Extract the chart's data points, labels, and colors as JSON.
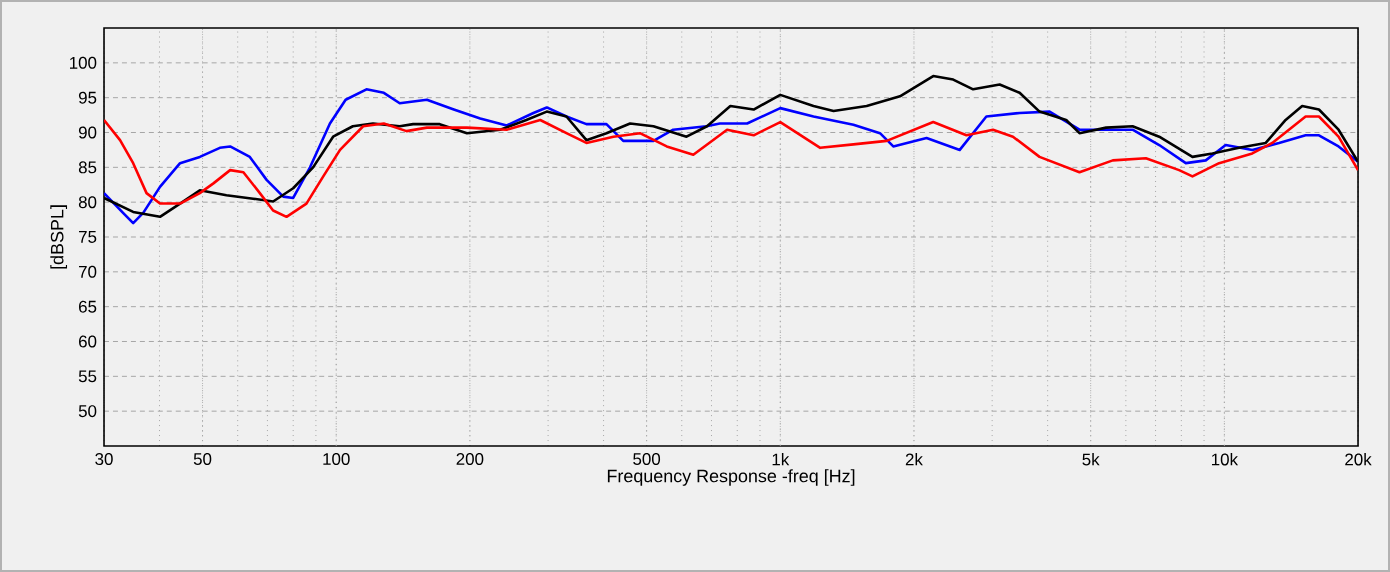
{
  "chart_data": {
    "type": "line",
    "xlabel": "Frequency Response -freq [Hz]",
    "ylabel": "[dBSPL]",
    "log": "x",
    "grid": true,
    "xlim": [
      30,
      20000
    ],
    "ylim": [
      45,
      105
    ],
    "xticks": [
      30,
      50,
      100,
      200,
      500,
      {
        "value": 1000,
        "label": "1k"
      },
      {
        "value": 2000,
        "label": "2k"
      },
      {
        "value": 5000,
        "label": "5k"
      },
      {
        "value": 10000,
        "label": "10k"
      },
      {
        "value": 20000,
        "label": "20k"
      }
    ],
    "yticks": [
      50,
      55,
      60,
      65,
      70,
      75,
      80,
      85,
      90,
      95,
      100
    ],
    "series": [
      {
        "color": "#0000ff",
        "x": [
          30,
          33.2,
          34.9,
          36.8,
          40.1,
          44.5,
          49.3,
          54.7,
          57.7,
          63.9,
          69.7,
          76,
          80,
          87.3,
          96.8,
          105,
          117,
          128,
          139,
          160,
          184,
          211,
          242,
          278,
          298,
          330,
          366,
          406,
          443,
          518,
          574,
          682,
          731,
          842,
          1000,
          1188,
          1461,
          1677,
          1797,
          2135,
          2536,
          2911,
          3459,
          4040,
          4718,
          5418,
          6214,
          7134,
          8188,
          9081,
          10070,
          11560,
          13280,
          15240,
          16330,
          18080,
          20000
        ],
        "values": [
          81.3,
          78.4,
          77,
          78.5,
          82.2,
          85.6,
          86.5,
          87.8,
          88,
          86.5,
          83.2,
          80.8,
          80.6,
          85,
          91.3,
          94.7,
          96.2,
          95.7,
          94.2,
          94.7,
          93.3,
          92,
          91,
          92.8,
          93.6,
          92.3,
          91.2,
          91.2,
          88.8,
          88.8,
          90.4,
          90.9,
          91.3,
          91.3,
          93.5,
          92.3,
          91.1,
          89.9,
          88,
          89.2,
          87.5,
          92.3,
          92.8,
          93,
          90.4,
          90.4,
          90.4,
          88.2,
          85.6,
          86,
          88.2,
          87.5,
          88.5,
          89.6,
          89.6,
          88,
          85.8
        ]
      },
      {
        "color": "#000000",
        "x": [
          30,
          34.9,
          40.1,
          44.5,
          49.3,
          56.6,
          65,
          72.1,
          80,
          88.7,
          98.4,
          109,
          121,
          139,
          149,
          171,
          197,
          234,
          268,
          298,
          330,
          366,
          406,
          459,
          518,
          615,
          684,
          772,
          871,
          1000,
          1188,
          1318,
          1565,
          1860,
          2210,
          2451,
          2718,
          3119,
          3459,
          3836,
          4403,
          4718,
          5418,
          6214,
          7134,
          8475,
          9400,
          10790,
          12390,
          13740,
          14970,
          16330,
          18080,
          20000
        ],
        "values": [
          80.6,
          78.6,
          77.9,
          79.8,
          81.7,
          81,
          80.5,
          80.1,
          82,
          85,
          89.4,
          90.9,
          91.3,
          90.9,
          91.2,
          91.2,
          89.9,
          90.4,
          91.8,
          93,
          92.3,
          88.9,
          89.9,
          91.3,
          90.9,
          89.4,
          90.9,
          93.8,
          93.3,
          95.4,
          93.8,
          93.1,
          93.8,
          95.2,
          98.1,
          97.6,
          96.2,
          96.9,
          95.7,
          93,
          91.8,
          89.9,
          90.7,
          90.9,
          89.4,
          86.5,
          87,
          87.8,
          88.5,
          91.8,
          93.8,
          93.3,
          90.4,
          85.8
        ]
      },
      {
        "color": "#ff0000",
        "x": [
          30,
          32.6,
          34.9,
          37.4,
          40.1,
          44.5,
          49.3,
          52.9,
          57.7,
          61.8,
          67.3,
          72.1,
          77.3,
          85.7,
          93.5,
          102,
          115,
          128,
          144,
          160,
          197,
          242,
          288,
          330,
          366,
          421,
          483,
          555,
          637,
          759,
          871,
          1000,
          1230,
          1461,
          1736,
          2210,
          2625,
          3013,
          3342,
          3836,
          4718,
          5608,
          6658,
          7910,
          8475,
          9730,
          11560,
          12820,
          15240,
          16330,
          18080,
          20000
        ],
        "values": [
          91.8,
          88.9,
          85.6,
          81.3,
          79.8,
          79.8,
          81.3,
          82.7,
          84.6,
          84.3,
          81.3,
          78.8,
          77.9,
          79.8,
          83.7,
          87.5,
          90.9,
          91.3,
          90.2,
          90.7,
          90.7,
          90.4,
          91.8,
          89.9,
          88.5,
          89.4,
          89.9,
          88,
          86.8,
          90.4,
          89.6,
          91.5,
          87.8,
          88.3,
          88.8,
          91.5,
          89.6,
          90.4,
          89.4,
          86.5,
          84.3,
          86,
          86.3,
          84.6,
          83.7,
          85.6,
          87,
          88.5,
          92.3,
          92.3,
          89.4,
          84.6
        ]
      }
    ]
  }
}
